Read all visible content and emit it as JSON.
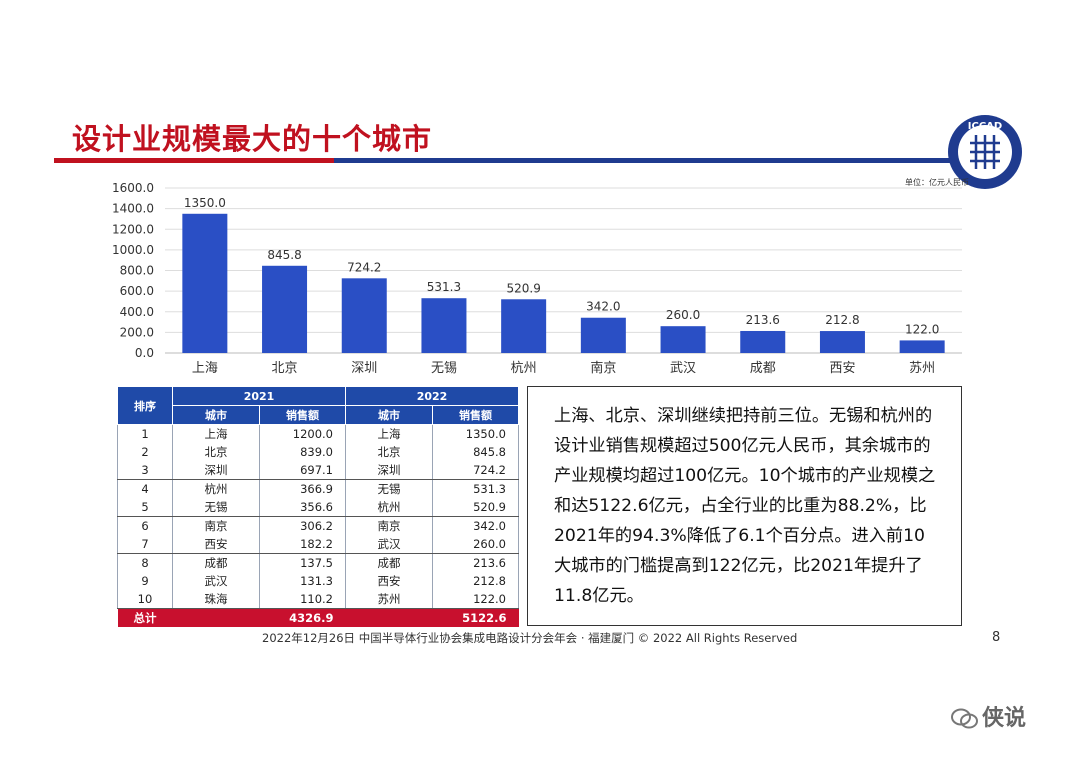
{
  "title": "设计业规模最大的十个城市",
  "unit_label": "单位：亿元人民币",
  "logo_text": "ICCAD",
  "colors": {
    "bar": "#2a4fc5",
    "title_red": "#c0111f",
    "header_blue": "#1f4aa8",
    "total_red": "#c8102e"
  },
  "chart_data": {
    "type": "bar",
    "categories": [
      "上海",
      "北京",
      "深圳",
      "无锡",
      "杭州",
      "南京",
      "武汉",
      "成都",
      "西安",
      "苏州"
    ],
    "values": [
      1350.0,
      845.8,
      724.2,
      531.3,
      520.9,
      342.0,
      260.0,
      213.6,
      212.8,
      122.0
    ],
    "value_labels": [
      "1350.0",
      "845.8",
      "724.2",
      "531.3",
      "520.9",
      "342.0",
      "260.0",
      "213.6",
      "212.8",
      "122.0"
    ],
    "ylim": [
      0,
      1600
    ],
    "yticks": [
      "0.0",
      "200.0",
      "400.0",
      "600.0",
      "800.0",
      "1000.0",
      "1200.0",
      "1400.0",
      "1600.0"
    ],
    "grid": true
  },
  "table": {
    "rank_header": "排序",
    "year1": "2021",
    "year2": "2022",
    "city_header": "城市",
    "sales_header": "销售额",
    "rows": [
      {
        "rank": "1",
        "city1": "上海",
        "val1": "1200.0",
        "city2": "上海",
        "val2": "1350.0"
      },
      {
        "rank": "2",
        "city1": "北京",
        "val1": "839.0",
        "city2": "北京",
        "val2": "845.8"
      },
      {
        "rank": "3",
        "city1": "深圳",
        "val1": "697.1",
        "city2": "深圳",
        "val2": "724.2"
      },
      {
        "rank": "4",
        "city1": "杭州",
        "val1": "366.9",
        "city2": "无锡",
        "val2": "531.3"
      },
      {
        "rank": "5",
        "city1": "无锡",
        "val1": "356.6",
        "city2": "杭州",
        "val2": "520.9"
      },
      {
        "rank": "6",
        "city1": "南京",
        "val1": "306.2",
        "city2": "南京",
        "val2": "342.0"
      },
      {
        "rank": "7",
        "city1": "西安",
        "val1": "182.2",
        "city2": "武汉",
        "val2": "260.0"
      },
      {
        "rank": "8",
        "city1": "成都",
        "val1": "137.5",
        "city2": "成都",
        "val2": "213.6"
      },
      {
        "rank": "9",
        "city1": "武汉",
        "val1": "131.3",
        "city2": "西安",
        "val2": "212.8"
      },
      {
        "rank": "10",
        "city1": "珠海",
        "val1": "110.2",
        "city2": "苏州",
        "val2": "122.0"
      }
    ],
    "total_label": "总计",
    "total1": "4326.9",
    "total2": "5122.6"
  },
  "summary": "上海、北京、深圳继续把持前三位。无锡和杭州的设计业销售规模超过500亿元人民币，其余城市的产业规模均超过100亿元。10个城市的产业规模之和达5122.6亿元，占全行业的比重为88.2%，比2021年的94.3%降低了6.1个百分点。进入前10大城市的门槛提高到122亿元，比2021年提升了11.8亿元。",
  "footer": "2022年12月26日 中国半导体行业协会集成电路设计分会年会 · 福建厦门 © 2022 All Rights Reserved",
  "page_number": "8",
  "watermark": "侠说"
}
